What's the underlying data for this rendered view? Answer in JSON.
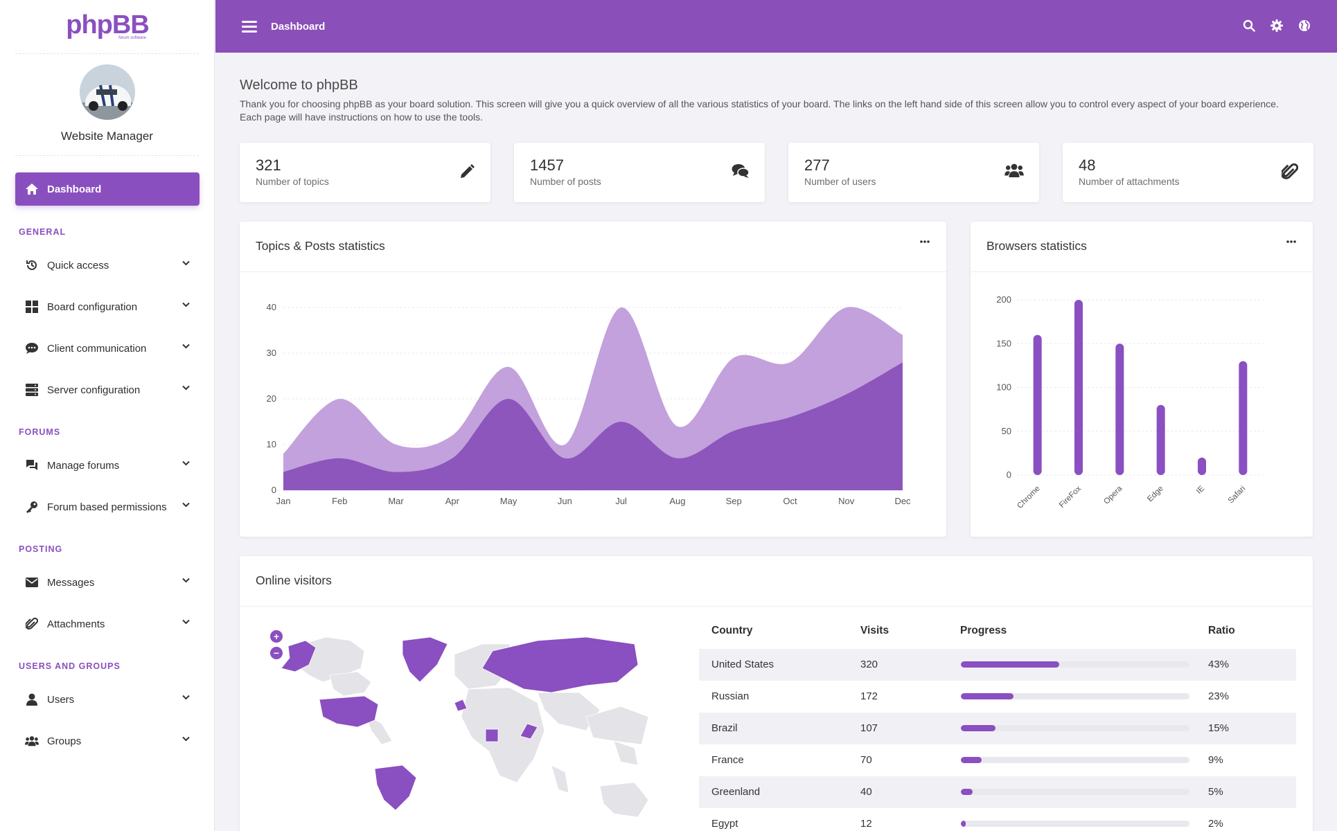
{
  "brand": {
    "logo_text": "phpBB",
    "logo_sub": "forum software",
    "accent": "#8a4fbf"
  },
  "profile": {
    "name": "Website Manager"
  },
  "sidebar": {
    "active": {
      "label": "Dashboard",
      "icon": "home-icon"
    },
    "sections": [
      {
        "title": "GENERAL",
        "items": [
          {
            "label": "Quick access",
            "icon": "history-icon"
          },
          {
            "label": "Board configuration",
            "icon": "grid-icon"
          },
          {
            "label": "Client communication",
            "icon": "chat-icon"
          },
          {
            "label": "Server configuration",
            "icon": "server-icon"
          }
        ]
      },
      {
        "title": "FORUMS",
        "items": [
          {
            "label": "Manage forums",
            "icon": "forum-icon"
          },
          {
            "label": "Forum based permissions",
            "icon": "key-icon"
          }
        ]
      },
      {
        "title": "POSTING",
        "items": [
          {
            "label": "Messages",
            "icon": "envelope-icon"
          },
          {
            "label": "Attachments",
            "icon": "paperclip-icon"
          }
        ]
      },
      {
        "title": "USERS AND GROUPS",
        "items": [
          {
            "label": "Users",
            "icon": "user-icon"
          },
          {
            "label": "Groups",
            "icon": "users-icon"
          }
        ]
      }
    ]
  },
  "header": {
    "title": "Dashboard",
    "icons": [
      "search-icon",
      "gear-icon",
      "globe-icon"
    ]
  },
  "welcome": {
    "title": "Welcome to phpBB",
    "text": "Thank you for choosing phpBB as your board solution. This screen will give you a quick overview of all the various statistics of your board. The links on the left hand side of this screen allow you to control every aspect of your board experience. Each page will have instructions on how to use the tools."
  },
  "stats": [
    {
      "value": "321",
      "label": "Number of topics",
      "icon": "pencil-icon"
    },
    {
      "value": "1457",
      "label": "Number of posts",
      "icon": "comments-icon"
    },
    {
      "value": "277",
      "label": "Number of users",
      "icon": "users-icon"
    },
    {
      "value": "48",
      "label": "Number of attachments",
      "icon": "paperclip-icon"
    }
  ],
  "topics_card": {
    "title": "Topics & Posts statistics"
  },
  "browsers_card": {
    "title": "Browsers statistics"
  },
  "visitors_card": {
    "title": "Online visitors"
  },
  "chart_data": [
    {
      "type": "area",
      "title": "Topics & Posts statistics",
      "categories": [
        "Jan",
        "Feb",
        "Mar",
        "Apr",
        "May",
        "Jun",
        "Jul",
        "Aug",
        "Sep",
        "Oct",
        "Nov",
        "Dec"
      ],
      "ylim": [
        0,
        40
      ],
      "yticks": [
        0,
        10,
        20,
        30,
        40
      ],
      "grid": true,
      "series": [
        {
          "values": [
            8,
            20,
            10,
            12,
            27,
            10,
            40,
            14,
            29,
            28,
            40,
            34
          ],
          "color": "#c3a1dc"
        },
        {
          "values": [
            4,
            7,
            4,
            7,
            20,
            7,
            15,
            7,
            13,
            16,
            21,
            28
          ],
          "color": "#8c56bd"
        }
      ]
    },
    {
      "type": "bar",
      "title": "Browsers statistics",
      "categories": [
        "Chrome",
        "FireFox",
        "Opera",
        "Edge",
        "IE",
        "Safari"
      ],
      "values": [
        160,
        200,
        150,
        80,
        20,
        130
      ],
      "ylim": [
        0,
        200
      ],
      "yticks": [
        0,
        50,
        100,
        150,
        200
      ],
      "grid": true,
      "color": "#8a4fc0"
    }
  ],
  "map": {
    "highlighted_countries": [
      "United States",
      "Russian",
      "Brazil",
      "France",
      "Greenland",
      "Egypt"
    ],
    "zoom_in": "+",
    "zoom_out": "−"
  },
  "visitors": {
    "columns": [
      "Country",
      "Visits",
      "Progress",
      "Ratio"
    ],
    "rows": [
      {
        "country": "United States",
        "visits": "320",
        "progress": 0.43,
        "ratio": "43%"
      },
      {
        "country": "Russian",
        "visits": "172",
        "progress": 0.23,
        "ratio": "23%"
      },
      {
        "country": "Brazil",
        "visits": "107",
        "progress": 0.15,
        "ratio": "15%"
      },
      {
        "country": "France",
        "visits": "70",
        "progress": 0.09,
        "ratio": "9%"
      },
      {
        "country": "Greenland",
        "visits": "40",
        "progress": 0.05,
        "ratio": "5%"
      },
      {
        "country": "Egypt",
        "visits": "12",
        "progress": 0.02,
        "ratio": "2%"
      }
    ]
  }
}
